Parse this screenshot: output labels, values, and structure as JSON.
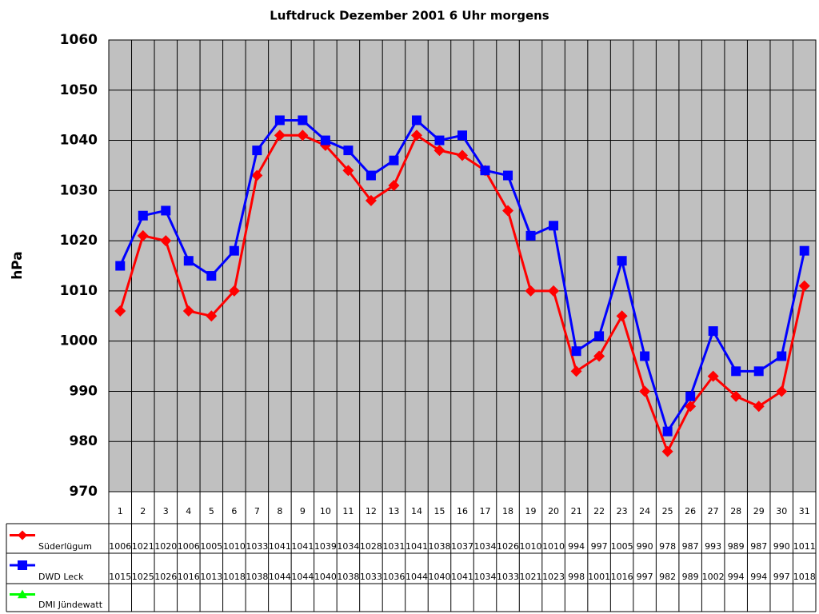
{
  "chart_data": {
    "type": "line",
    "title": "Luftdruck Dezember 2001 6 Uhr morgens",
    "y_label": "hPa",
    "categories": [
      "1",
      "2",
      "3",
      "4",
      "5",
      "6",
      "7",
      "8",
      "9",
      "10",
      "11",
      "12",
      "13",
      "14",
      "15",
      "16",
      "17",
      "18",
      "19",
      "20",
      "21",
      "22",
      "23",
      "24",
      "25",
      "26",
      "27",
      "28",
      "29",
      "30",
      "31"
    ],
    "series": [
      {
        "name": "Süderlügum",
        "color": "#ff0000",
        "marker": "diamond",
        "values": [
          1006,
          1021,
          1020,
          1006,
          1005,
          1010,
          1033,
          1041,
          1041,
          1039,
          1034,
          1028,
          1031,
          1041,
          1038,
          1037,
          1034,
          1026,
          1010,
          1010,
          994,
          997,
          1005,
          990,
          978,
          987,
          993,
          989,
          987,
          990,
          1011
        ]
      },
      {
        "name": "DWD Leck",
        "color": "#0000ff",
        "marker": "square",
        "values": [
          1015,
          1025,
          1026,
          1016,
          1013,
          1018,
          1038,
          1044,
          1044,
          1040,
          1038,
          1033,
          1036,
          1044,
          1040,
          1041,
          1034,
          1033,
          1021,
          1023,
          998,
          1001,
          1016,
          997,
          982,
          989,
          1002,
          994,
          994,
          997,
          1018
        ]
      },
      {
        "name": "DMI Jündewatt",
        "color": "#00ff00",
        "marker": "triangle",
        "values": [
          null,
          null,
          null,
          null,
          null,
          null,
          null,
          null,
          null,
          null,
          null,
          null,
          null,
          null,
          null,
          null,
          null,
          null,
          null,
          null,
          null,
          null,
          null,
          null,
          null,
          null,
          null,
          null,
          null,
          null,
          null
        ]
      }
    ],
    "ylim": [
      970,
      1060
    ],
    "yticks": [
      970,
      980,
      990,
      1000,
      1010,
      1020,
      1030,
      1040,
      1050,
      1060
    ],
    "grid": true,
    "data_table": true
  }
}
